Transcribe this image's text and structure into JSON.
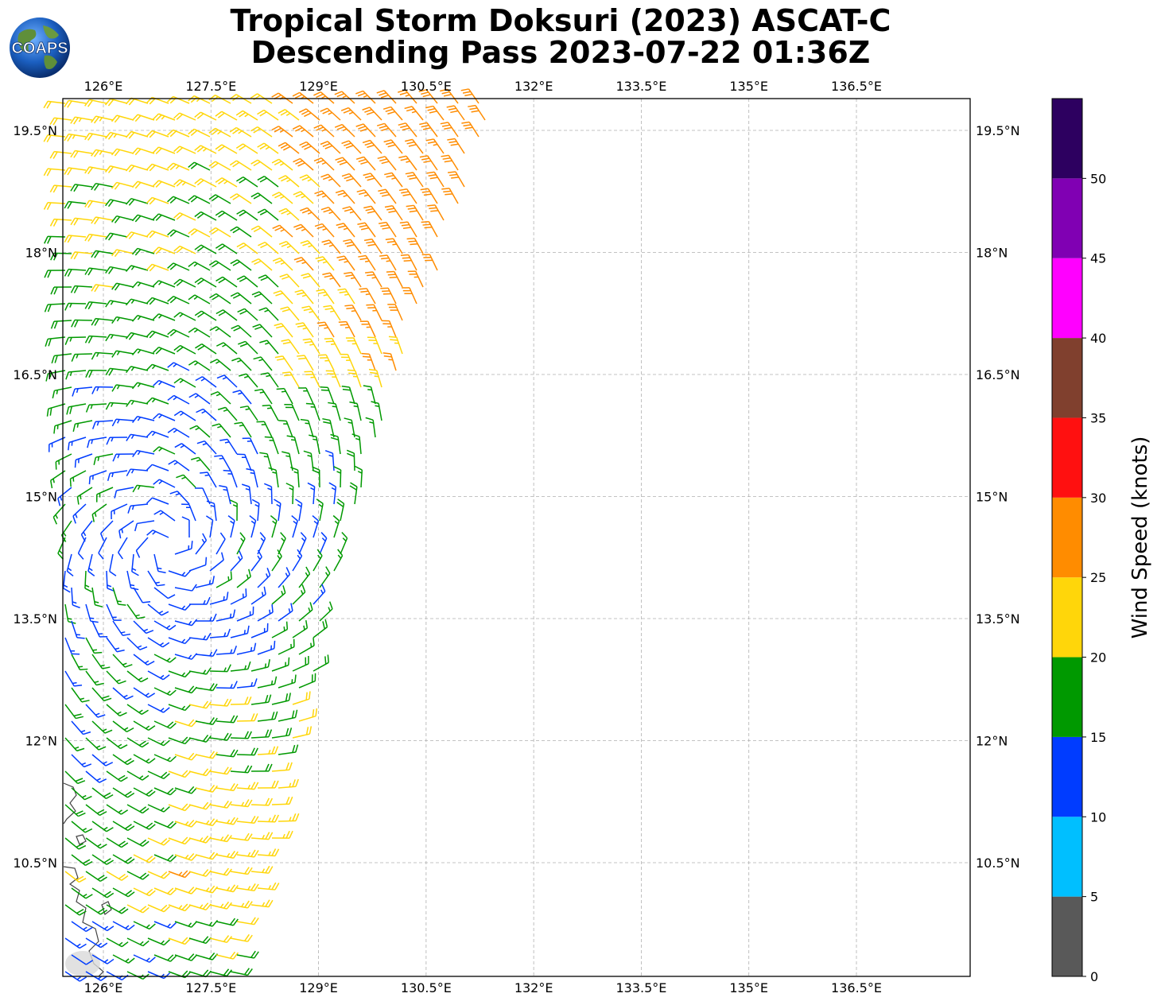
{
  "title": {
    "line1": "Tropical Storm Doksuri (2023) ASCAT-C",
    "line2": "Descending Pass 2023-07-22 01:36Z"
  },
  "logo": {
    "text": "COAPS"
  },
  "map": {
    "lon_ticks": [
      "126°E",
      "127.5°E",
      "129°E",
      "130.5°E",
      "132°E",
      "133.5°E",
      "135°E",
      "136.5°E"
    ],
    "lat_ticks": [
      "19.5°N",
      "18°N",
      "16.5°N",
      "15°N",
      "13.5°N",
      "12°N",
      "10.5°N"
    ],
    "lon_values": [
      126,
      127.5,
      129,
      130.5,
      132,
      133.5,
      135,
      136.5
    ],
    "lat_values": [
      19.5,
      18,
      16.5,
      15,
      13.5,
      12,
      10.5
    ],
    "extent": {
      "lon_min": 125.52,
      "lon_max": 136.7,
      "lat_min": 9.0,
      "lat_max": 19.9
    },
    "storm_center_approx": {
      "lon": 126.9,
      "lat": 14.4
    },
    "grid": true
  },
  "colorbar": {
    "label": "Wind Speed (knots)",
    "ticks": [
      "0",
      "5",
      "10",
      "15",
      "20",
      "25",
      "30",
      "35",
      "40",
      "45",
      "50"
    ],
    "bins": [
      {
        "from": 0,
        "to": 5,
        "color": "#595959"
      },
      {
        "from": 5,
        "to": 10,
        "color": "#00bfff"
      },
      {
        "from": 10,
        "to": 15,
        "color": "#003cff"
      },
      {
        "from": 15,
        "to": 20,
        "color": "#009900"
      },
      {
        "from": 20,
        "to": 25,
        "color": "#ffd60a"
      },
      {
        "from": 25,
        "to": 30,
        "color": "#ff8c00"
      },
      {
        "from": 30,
        "to": 35,
        "color": "#ff1010"
      },
      {
        "from": 35,
        "to": 40,
        "color": "#80402e"
      },
      {
        "from": 40,
        "to": 45,
        "color": "#ff00ff"
      },
      {
        "from": 45,
        "to": 50,
        "color": "#8000b3"
      },
      {
        "from": 50,
        "to": 55,
        "color": "#2d0060"
      }
    ]
  }
}
